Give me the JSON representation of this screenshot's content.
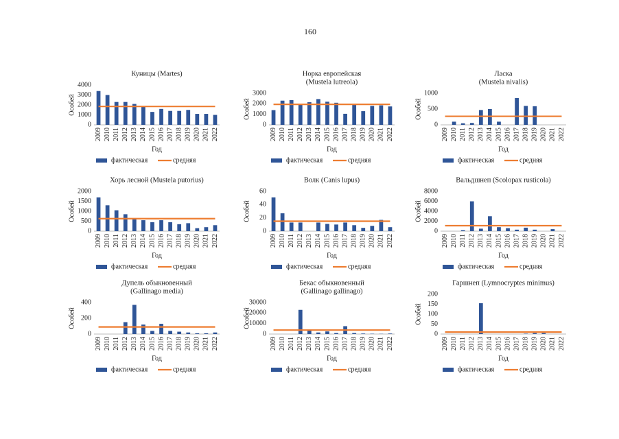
{
  "page_number": "160",
  "chart_data": [
    {
      "type": "bar",
      "title": [
        "Куницы (Martes)"
      ],
      "x_label": "Год",
      "y_label": "Особей",
      "categories": [
        "2009",
        "2010",
        "2011",
        "2012",
        "2013",
        "2014",
        "2015",
        "2016",
        "2017",
        "2018",
        "2019",
        "2020",
        "2021",
        "2022"
      ],
      "ylim": [
        0,
        4000
      ],
      "yticks": [
        0,
        1000,
        2000,
        3000,
        4000
      ],
      "grid": false,
      "series": [
        {
          "name": "фактическая",
          "type": "bar",
          "color": "#2f5597",
          "values": [
            3400,
            3000,
            2300,
            2300,
            2100,
            1800,
            1300,
            1600,
            1400,
            1400,
            1500,
            1100,
            1100,
            1000
          ]
        },
        {
          "name": "средняя",
          "type": "line",
          "color": "#ed7d31",
          "values": [
            1850,
            1850,
            1850,
            1850,
            1850,
            1850,
            1850,
            1850,
            1850,
            1850,
            1850,
            1850,
            1850,
            1850
          ]
        }
      ]
    },
    {
      "type": "bar",
      "title": [
        "Норка европейская",
        "(Mustela lutreola)"
      ],
      "x_label": "Год",
      "y_label": "Особей",
      "categories": [
        "2009",
        "2010",
        "2011",
        "2012",
        "2013",
        "2014",
        "2015",
        "2016",
        "2017",
        "2018",
        "2019",
        "2020",
        "2021",
        "2022"
      ],
      "ylim": [
        0,
        3000
      ],
      "yticks": [
        0,
        1000,
        2000,
        3000
      ],
      "grid": false,
      "series": [
        {
          "name": "фактическая",
          "type": "bar",
          "color": "#2f5597",
          "values": [
            1400,
            2300,
            2350,
            2000,
            2150,
            2450,
            2200,
            2100,
            1050,
            2000,
            1300,
            1800,
            1850,
            1750
          ]
        },
        {
          "name": "средняя",
          "type": "line",
          "color": "#ed7d31",
          "values": [
            1950,
            1950,
            1950,
            1950,
            1950,
            1950,
            1950,
            1950,
            1950,
            1950,
            1950,
            1950,
            1950,
            1950
          ]
        }
      ]
    },
    {
      "type": "bar",
      "title": [
        "Ласка",
        "(Mustela nivalis)"
      ],
      "x_label": "Год",
      "y_label": "Особей",
      "categories": [
        "2009",
        "2010",
        "2011",
        "2012",
        "2013",
        "2014",
        "2015",
        "2016",
        "2017",
        "2018",
        "2019",
        "2020",
        "2021",
        "2022"
      ],
      "ylim": [
        0,
        1000
      ],
      "yticks": [
        0,
        500,
        1000
      ],
      "grid": false,
      "series": [
        {
          "name": "фактическая",
          "type": "bar",
          "color": "#2f5597",
          "values": [
            0,
            100,
            50,
            60,
            470,
            500,
            100,
            0,
            850,
            600,
            590,
            0,
            0,
            0
          ]
        },
        {
          "name": "средняя",
          "type": "line",
          "color": "#ed7d31",
          "values": [
            270,
            270,
            270,
            270,
            270,
            270,
            270,
            270,
            270,
            270,
            270,
            270,
            270,
            270
          ]
        }
      ]
    },
    {
      "type": "bar",
      "title": [
        "Хорь лесной (Mustela putorius)"
      ],
      "x_label": "Год",
      "y_label": "Особей",
      "categories": [
        "2009",
        "2010",
        "2011",
        "2012",
        "2013",
        "2014",
        "2015",
        "2016",
        "2017",
        "2018",
        "2019",
        "2020",
        "2021",
        "2022"
      ],
      "ylim": [
        0,
        2000
      ],
      "yticks": [
        0,
        500,
        1000,
        1500,
        2000
      ],
      "grid": false,
      "series": [
        {
          "name": "фактическая",
          "type": "bar",
          "color": "#2f5597",
          "values": [
            1700,
            1300,
            1050,
            850,
            600,
            550,
            450,
            550,
            450,
            350,
            400,
            150,
            200,
            300
          ]
        },
        {
          "name": "средняя",
          "type": "line",
          "color": "#ed7d31",
          "values": [
            630,
            630,
            630,
            630,
            630,
            630,
            630,
            630,
            630,
            630,
            630,
            630,
            630,
            630
          ]
        }
      ]
    },
    {
      "type": "bar",
      "title": [
        "Волк (Canis lupus)"
      ],
      "x_label": "Год",
      "y_label": "Особей",
      "categories": [
        "2009",
        "2010",
        "2011",
        "2012",
        "2013",
        "2014",
        "2015",
        "2016",
        "2017",
        "2018",
        "2019",
        "2020",
        "2021",
        "2022"
      ],
      "ylim": [
        0,
        60
      ],
      "yticks": [
        0,
        20,
        40,
        60
      ],
      "grid": false,
      "series": [
        {
          "name": "фактическая",
          "type": "bar",
          "color": "#2f5597",
          "values": [
            51,
            27,
            13,
            13,
            0,
            13,
            11,
            10,
            13,
            9,
            5,
            8,
            17,
            6
          ]
        },
        {
          "name": "средняя",
          "type": "line",
          "color": "#ed7d31",
          "values": [
            15,
            15,
            15,
            15,
            15,
            15,
            15,
            15,
            15,
            15,
            15,
            15,
            15,
            15
          ]
        }
      ]
    },
    {
      "type": "bar",
      "title": [
        "Вальдшнеп (Scolopax rusticola)"
      ],
      "x_label": "Год",
      "y_label": "Особей",
      "categories": [
        "2009",
        "2010",
        "2011",
        "2012",
        "2013",
        "2014",
        "2015",
        "2016",
        "2017",
        "2018",
        "2019",
        "2020",
        "2021",
        "2022"
      ],
      "ylim": [
        0,
        8000
      ],
      "yticks": [
        0,
        2000,
        4000,
        6000,
        8000
      ],
      "grid": false,
      "series": [
        {
          "name": "фактическая",
          "type": "bar",
          "color": "#2f5597",
          "values": [
            0,
            0,
            200,
            6000,
            500,
            3000,
            800,
            600,
            300,
            700,
            300,
            0,
            400,
            0
          ]
        },
        {
          "name": "средняя",
          "type": "line",
          "color": "#ed7d31",
          "values": [
            1100,
            1100,
            1100,
            1100,
            1100,
            1100,
            1100,
            1100,
            1100,
            1100,
            1100,
            1100,
            1100,
            1100
          ]
        }
      ]
    },
    {
      "type": "bar",
      "title": [
        "Дупель обыкновенный",
        "(Gallinago media)"
      ],
      "x_label": "Год",
      "y_label": "Особей",
      "categories": [
        "2009",
        "2010",
        "2011",
        "2012",
        "2013",
        "2014",
        "2015",
        "2016",
        "2017",
        "2018",
        "2019",
        "2020",
        "2021",
        "2022"
      ],
      "ylim": [
        0,
        400
      ],
      "yticks": [
        0,
        200,
        400
      ],
      "grid": false,
      "series": [
        {
          "name": "фактическая",
          "type": "bar",
          "color": "#2f5597",
          "values": [
            0,
            0,
            0,
            150,
            370,
            120,
            40,
            130,
            40,
            30,
            20,
            10,
            10,
            20
          ]
        },
        {
          "name": "средняя",
          "type": "line",
          "color": "#ed7d31",
          "values": [
            90,
            90,
            90,
            90,
            90,
            90,
            90,
            90,
            90,
            90,
            90,
            90,
            90,
            90
          ]
        }
      ]
    },
    {
      "type": "bar",
      "title": [
        "Бекас обыкновенный",
        "(Gallinago gallinago)"
      ],
      "x_label": "Год",
      "y_label": "Особей",
      "categories": [
        "2009",
        "2010",
        "2011",
        "2012",
        "2013",
        "2014",
        "2015",
        "2016",
        "2017",
        "2018",
        "2019",
        "2020",
        "2021",
        "2022"
      ],
      "ylim": [
        0,
        30000
      ],
      "yticks": [
        0,
        10000,
        20000,
        30000
      ],
      "grid": false,
      "series": [
        {
          "name": "фактическая",
          "type": "bar",
          "color": "#2f5597",
          "values": [
            0,
            0,
            0,
            23000,
            3500,
            1500,
            2500,
            1000,
            7500,
            1000,
            500,
            300,
            200,
            500
          ]
        },
        {
          "name": "средняя",
          "type": "line",
          "color": "#ed7d31",
          "values": [
            3800,
            3800,
            3800,
            3800,
            3800,
            3800,
            3800,
            3800,
            3800,
            3800,
            3800,
            3800,
            3800,
            3800
          ]
        }
      ]
    },
    {
      "type": "bar",
      "title": [
        "Гаршнеп (Lymnocryptes minimus)"
      ],
      "x_label": "Год",
      "y_label": "Особей",
      "categories": [
        "2009",
        "2010",
        "2011",
        "2012",
        "2013",
        "2014",
        "2015",
        "2016",
        "2017",
        "2018",
        "2019",
        "2020",
        "2021",
        "2022"
      ],
      "ylim": [
        0,
        200
      ],
      "yticks": [
        0,
        50,
        100,
        150,
        200
      ],
      "grid": false,
      "series": [
        {
          "name": "фактическая",
          "type": "bar",
          "color": "#2f5597",
          "values": [
            0,
            0,
            0,
            0,
            155,
            0,
            0,
            0,
            0,
            2,
            5,
            5,
            0,
            0
          ]
        },
        {
          "name": "средняя",
          "type": "line",
          "color": "#ed7d31",
          "values": [
            10,
            10,
            10,
            10,
            10,
            10,
            10,
            10,
            10,
            10,
            10,
            10,
            10,
            10
          ]
        }
      ]
    }
  ]
}
